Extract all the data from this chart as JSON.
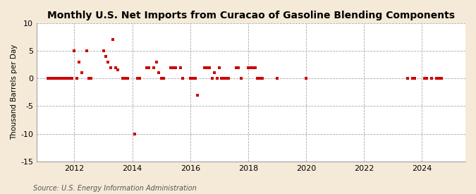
{
  "title": "Monthly U.S. Net Imports from Curacao of Gasoline Blending Components",
  "ylabel": "Thousand Barrels per Day",
  "source": "Source: U.S. Energy Information Administration",
  "bg_color": "#f5ead8",
  "plot_bg_color": "#ffffff",
  "marker_color": "#cc0000",
  "ylim": [
    -15,
    10
  ],
  "yticks": [
    -15,
    -10,
    -5,
    0,
    5,
    10
  ],
  "xlim": [
    2010.7,
    2025.5
  ],
  "xticks": [
    2012,
    2014,
    2016,
    2018,
    2020,
    2022,
    2024
  ],
  "title_fontsize": 10,
  "ylabel_fontsize": 7.5,
  "tick_fontsize": 8,
  "source_fontsize": 7,
  "scatter_s": 9,
  "data_points": [
    [
      2011.08,
      0
    ],
    [
      2011.17,
      0
    ],
    [
      2011.25,
      0
    ],
    [
      2011.33,
      0
    ],
    [
      2011.42,
      0
    ],
    [
      2011.5,
      0
    ],
    [
      2011.58,
      0
    ],
    [
      2011.67,
      0
    ],
    [
      2011.75,
      0
    ],
    [
      2011.83,
      0
    ],
    [
      2011.92,
      0
    ],
    [
      2012.0,
      5
    ],
    [
      2012.08,
      0
    ],
    [
      2012.17,
      3
    ],
    [
      2012.25,
      1
    ],
    [
      2012.42,
      5
    ],
    [
      2012.5,
      0
    ],
    [
      2012.58,
      0
    ],
    [
      2013.0,
      5
    ],
    [
      2013.08,
      4
    ],
    [
      2013.17,
      3
    ],
    [
      2013.25,
      2
    ],
    [
      2013.33,
      7
    ],
    [
      2013.42,
      2
    ],
    [
      2013.5,
      1.5
    ],
    [
      2013.67,
      0
    ],
    [
      2013.75,
      0
    ],
    [
      2013.83,
      0
    ],
    [
      2014.08,
      -10
    ],
    [
      2014.17,
      0
    ],
    [
      2014.25,
      0
    ],
    [
      2014.5,
      2
    ],
    [
      2014.58,
      2
    ],
    [
      2014.75,
      2
    ],
    [
      2014.83,
      3
    ],
    [
      2014.92,
      1
    ],
    [
      2015.0,
      0
    ],
    [
      2015.08,
      0
    ],
    [
      2015.33,
      2
    ],
    [
      2015.42,
      2
    ],
    [
      2015.5,
      2
    ],
    [
      2015.67,
      2
    ],
    [
      2015.75,
      0
    ],
    [
      2016.0,
      0
    ],
    [
      2016.08,
      0
    ],
    [
      2016.17,
      0
    ],
    [
      2016.25,
      -3
    ],
    [
      2016.5,
      2
    ],
    [
      2016.58,
      2
    ],
    [
      2016.67,
      2
    ],
    [
      2016.75,
      0
    ],
    [
      2016.83,
      1
    ],
    [
      2016.92,
      0
    ],
    [
      2017.0,
      2
    ],
    [
      2017.08,
      0
    ],
    [
      2017.17,
      0
    ],
    [
      2017.25,
      0
    ],
    [
      2017.33,
      0
    ],
    [
      2017.58,
      2
    ],
    [
      2017.67,
      2
    ],
    [
      2017.75,
      0
    ],
    [
      2018.0,
      2
    ],
    [
      2018.08,
      2
    ],
    [
      2018.17,
      2
    ],
    [
      2018.25,
      2
    ],
    [
      2018.33,
      0
    ],
    [
      2018.42,
      0
    ],
    [
      2018.5,
      0
    ],
    [
      2019.0,
      0
    ],
    [
      2020.0,
      0
    ],
    [
      2023.5,
      0
    ],
    [
      2023.67,
      0
    ],
    [
      2023.75,
      0
    ],
    [
      2024.08,
      0
    ],
    [
      2024.17,
      0
    ],
    [
      2024.33,
      0
    ],
    [
      2024.5,
      0
    ],
    [
      2024.58,
      0
    ],
    [
      2024.67,
      0
    ]
  ]
}
